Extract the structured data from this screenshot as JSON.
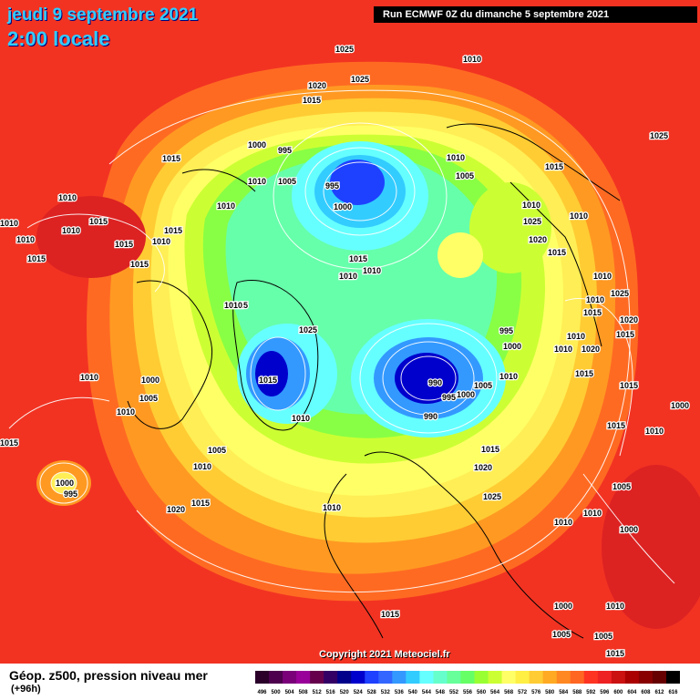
{
  "header": {
    "date": "jeudi 9 septembre 2021",
    "time": "2:00 locale",
    "run": "Run ECMWF 0Z du dimanche 5 septembre 2021"
  },
  "footer": {
    "caption": "Géop. z500, pression niveau mer",
    "lead": "(+96h)",
    "copyright": "Copyright 2021 Meteociel.fr"
  },
  "legend": {
    "labels": [
      "496",
      "500",
      "504",
      "508",
      "512",
      "516",
      "520",
      "524",
      "528",
      "532",
      "536",
      "540",
      "544",
      "548",
      "552",
      "556",
      "560",
      "564",
      "568",
      "572",
      "576",
      "580",
      "584",
      "588",
      "592",
      "596",
      "600",
      "604",
      "608",
      "612",
      "616"
    ],
    "colors": [
      "#2a002a",
      "#4d004d",
      "#7a007a",
      "#990099",
      "#66004d",
      "#330066",
      "#00008b",
      "#0000cd",
      "#1e40ff",
      "#3366ff",
      "#3399ff",
      "#33ccff",
      "#66ffff",
      "#66ffcc",
      "#66ff99",
      "#66ff66",
      "#99ff33",
      "#ccff33",
      "#ffff66",
      "#ffee44",
      "#ffcc33",
      "#ffaa22",
      "#ff8822",
      "#ff6622",
      "#ff3322",
      "#ee2222",
      "#cc1111",
      "#aa0000",
      "#880000",
      "#660000",
      "#000000"
    ]
  },
  "isobars": [
    {
      "value": "1025"
    },
    {
      "value": "1010"
    },
    {
      "value": "1025"
    },
    {
      "value": "1020"
    },
    {
      "value": "1015"
    },
    {
      "value": "1000"
    },
    {
      "value": "995"
    },
    {
      "value": "1010"
    },
    {
      "value": "1005"
    },
    {
      "value": "995"
    },
    {
      "value": "1000"
    },
    {
      "value": "1015"
    },
    {
      "value": "1010"
    },
    {
      "value": "1010"
    },
    {
      "value": "1015"
    },
    {
      "value": "1010"
    },
    {
      "value": "1010"
    },
    {
      "value": "1015"
    },
    {
      "value": "1010"
    },
    {
      "value": "1015"
    },
    {
      "value": "1015"
    },
    {
      "value": "1015"
    },
    {
      "value": "1015"
    },
    {
      "value": "1010"
    },
    {
      "value": "1015"
    },
    {
      "value": "1010"
    },
    {
      "value": "1010"
    },
    {
      "value": "1010"
    },
    {
      "value": "1005"
    },
    {
      "value": "1010"
    },
    {
      "value": "1015"
    },
    {
      "value": "1015"
    },
    {
      "value": "1020"
    },
    {
      "value": "1025"
    },
    {
      "value": "1010"
    },
    {
      "value": "1025"
    },
    {
      "value": "1010"
    },
    {
      "value": "1010"
    },
    {
      "value": "1015"
    },
    {
      "value": "1025"
    },
    {
      "value": "1020"
    },
    {
      "value": "1015"
    },
    {
      "value": "995"
    },
    {
      "value": "1000"
    },
    {
      "value": "1010"
    },
    {
      "value": "1010"
    },
    {
      "value": "1020"
    },
    {
      "value": "1010"
    },
    {
      "value": "1010"
    },
    {
      "value": "1025"
    },
    {
      "value": "990"
    },
    {
      "value": "995"
    },
    {
      "value": "1000"
    },
    {
      "value": "1005"
    },
    {
      "value": "990"
    },
    {
      "value": "1010"
    },
    {
      "value": "1015"
    },
    {
      "value": "1020"
    },
    {
      "value": "1025"
    },
    {
      "value": "1015"
    },
    {
      "value": "1010"
    },
    {
      "value": "1005"
    },
    {
      "value": "1000"
    },
    {
      "value": "1005"
    },
    {
      "value": "1010"
    },
    {
      "value": "1015"
    },
    {
      "value": "1020"
    },
    {
      "value": "1015"
    },
    {
      "value": "1010"
    },
    {
      "value": "1015"
    },
    {
      "value": "1010"
    },
    {
      "value": "1015"
    },
    {
      "value": "1000"
    },
    {
      "value": "1005"
    },
    {
      "value": "1010"
    },
    {
      "value": "1010"
    },
    {
      "value": "1000"
    },
    {
      "value": "1010"
    },
    {
      "value": "1000"
    },
    {
      "value": "1005"
    },
    {
      "value": "1015"
    },
    {
      "value": "1015"
    },
    {
      "value": "1010"
    },
    {
      "value": "1005"
    },
    {
      "value": "1015"
    },
    {
      "value": "1000"
    },
    {
      "value": "995"
    }
  ]
}
